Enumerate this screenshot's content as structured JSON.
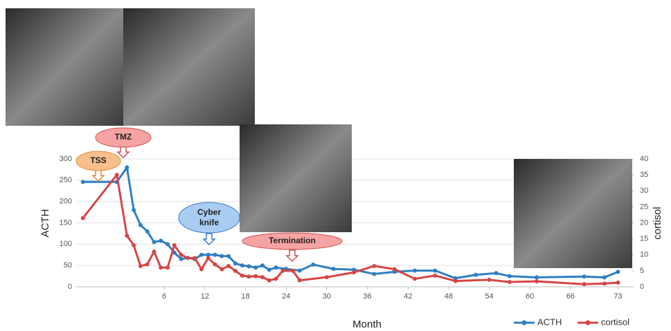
{
  "chart_data": {
    "type": "line",
    "x_label": "Month",
    "y_label": "ACTH",
    "y2_label": "cortisol",
    "xlim": [
      -7,
      75
    ],
    "xticks": [
      6,
      12,
      18,
      24,
      30,
      36,
      42,
      48,
      54,
      60,
      66,
      73
    ],
    "ylim": [
      0,
      300
    ],
    "yticks": [
      0,
      50,
      100,
      150,
      200,
      250,
      300
    ],
    "y2lim": [
      0,
      40
    ],
    "y2ticks": [
      0,
      5,
      10,
      15,
      20,
      25,
      30,
      35,
      40
    ],
    "grid": true,
    "legend": "bottom-right",
    "annotations": [
      "TSS",
      "TMZ",
      "Cyber knife",
      "Termination"
    ],
    "series": [
      {
        "name": "ACTH",
        "color": "#2e7fc1",
        "x": [
          -6,
          -1,
          0.5,
          1.5,
          2.5,
          3.5,
          4.5,
          5.5,
          6.5,
          7.5,
          8.5,
          9.5,
          10.5,
          11.5,
          12.5,
          13.5,
          14.5,
          15.5,
          16.5,
          17.5,
          18.5,
          19.5,
          20.5,
          21.5,
          22.5,
          24,
          26,
          28,
          31,
          34,
          37,
          40,
          43,
          46,
          49,
          52,
          55,
          57,
          61,
          68,
          71,
          73
        ],
        "values": [
          246,
          246,
          280,
          180,
          145,
          130,
          105,
          108,
          100,
          80,
          65,
          68,
          65,
          75,
          75,
          75,
          72,
          72,
          55,
          50,
          48,
          45,
          50,
          40,
          45,
          42,
          38,
          52,
          42,
          40,
          30,
          35,
          38,
          38,
          20,
          28,
          32,
          25,
          22,
          24,
          22,
          35
        ]
      },
      {
        "name": "cortisol",
        "color": "#d64545",
        "axis": "y2",
        "x": [
          -6,
          -1,
          0.5,
          1.5,
          2.5,
          3.5,
          4.5,
          5.5,
          6.5,
          7.5,
          8.5,
          9.5,
          10.5,
          11.5,
          12.5,
          13.5,
          14.5,
          15.5,
          16.5,
          17.5,
          18.5,
          19.5,
          20.5,
          21.5,
          22.5,
          23.5,
          25,
          26,
          30,
          34,
          37,
          40,
          43,
          46,
          49,
          54,
          57,
          61,
          68,
          71,
          73
        ],
        "values": [
          21.5,
          35,
          16,
          13,
          6.5,
          7,
          11,
          6,
          6,
          13,
          10,
          9,
          9,
          5.5,
          9,
          7,
          5.5,
          6.5,
          5,
          3.5,
          3.2,
          3.3,
          3,
          2,
          2.5,
          5,
          5,
          2,
          3,
          4.5,
          6.5,
          5.5,
          2.5,
          3.5,
          1.8,
          2.2,
          1.5,
          1.7,
          0.8,
          1,
          1.3
        ]
      }
    ]
  }
}
